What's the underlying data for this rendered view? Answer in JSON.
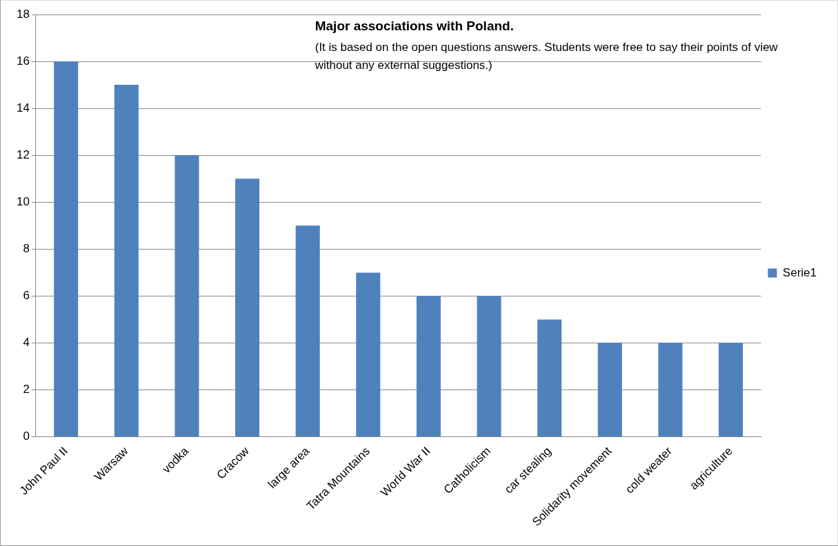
{
  "chart_data": {
    "type": "bar",
    "title": "Major associations with Poland.",
    "subtitle": "(It is based on the open questions answers. Students were free to say their points of view without any external suggestions.)",
    "categories": [
      "John Paul II",
      "Warsaw",
      "vodka",
      "Cracow",
      "large area",
      "Tatra Mountains",
      "World War II",
      "Catholicism",
      "car stealing",
      "Solidarity movement",
      "cold weater",
      "agriculture"
    ],
    "series": [
      {
        "name": "Serie1",
        "color": "#4f81bd",
        "values": [
          16,
          15,
          12,
          11,
          9,
          7,
          6,
          6,
          5,
          4,
          4,
          4
        ]
      }
    ],
    "ylim": [
      0,
      18
    ],
    "yticks": [
      0,
      2,
      4,
      6,
      8,
      10,
      12,
      14,
      16,
      18
    ],
    "grid": "y",
    "legend": "right"
  }
}
